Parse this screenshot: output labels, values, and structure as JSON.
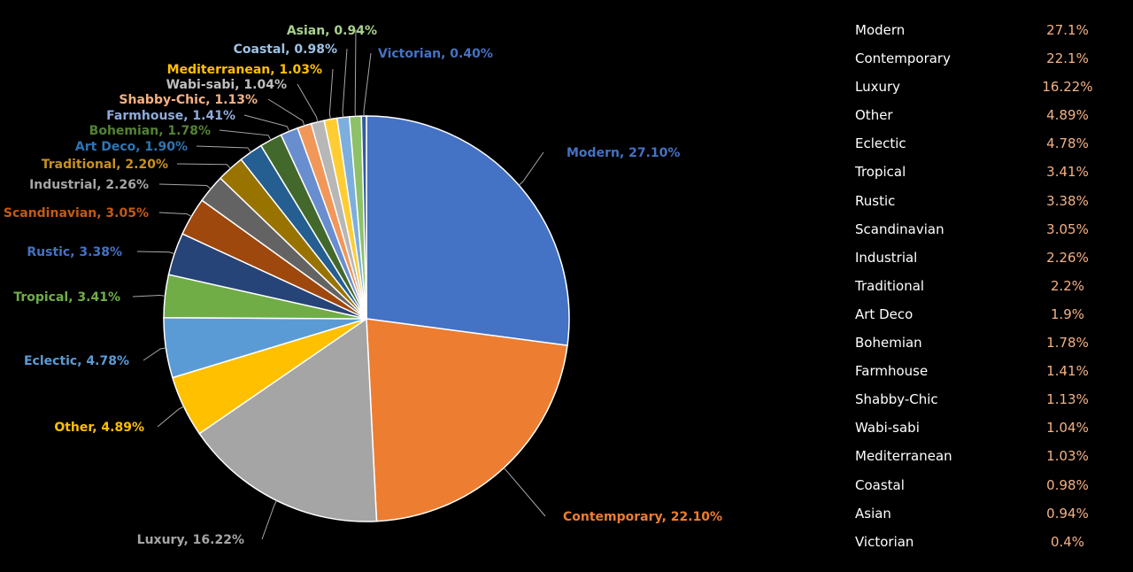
{
  "chart_data": {
    "type": "pie",
    "slices": [
      {
        "label": "Modern, 27.10%",
        "value": 27.1,
        "color": "#4472c4"
      },
      {
        "label": "Contemporary, 22.10%",
        "value": 22.1,
        "color": "#ed7d31"
      },
      {
        "label": "Luxury, 16.22%",
        "value": 16.22,
        "color": "#a5a5a5"
      },
      {
        "label": "Other, 4.89%",
        "value": 4.89,
        "color": "#ffc000"
      },
      {
        "label": "Eclectic, 4.78%",
        "value": 4.78,
        "color": "#5b9bd5"
      },
      {
        "label": "Tropical, 3.41%",
        "value": 3.41,
        "color": "#70ad47"
      },
      {
        "label": "Rustic, 3.38%",
        "value": 3.38,
        "color": "#264478"
      },
      {
        "label": "Scandinavian, 3.05%",
        "value": 3.05,
        "color": "#9e480e"
      },
      {
        "label": "Industrial, 2.26%",
        "value": 2.26,
        "color": "#636363"
      },
      {
        "label": "Traditional, 2.20%",
        "value": 2.2,
        "color": "#997300"
      },
      {
        "label": "Art Deco, 1.90%",
        "value": 1.9,
        "color": "#255e91"
      },
      {
        "label": "Bohemian, 1.78%",
        "value": 1.78,
        "color": "#43682b"
      },
      {
        "label": "Farmhouse, 1.41%",
        "value": 1.41,
        "color": "#698ed0"
      },
      {
        "label": "Shabby-Chic, 1.13%",
        "value": 1.13,
        "color": "#f1975a"
      },
      {
        "label": "Wabi-sabi, 1.04%",
        "value": 1.04,
        "color": "#b7b7b7"
      },
      {
        "label": "Mediterranean, 1.03%",
        "value": 1.03,
        "color": "#ffcd33"
      },
      {
        "label": "Coastal, 0.98%",
        "value": 0.98,
        "color": "#7cafdd"
      },
      {
        "label": "Asian, 0.94%",
        "value": 0.94,
        "color": "#8cc168"
      },
      {
        "label": "Victorian, 0.40%",
        "value": 0.4,
        "color": "#335aa1"
      }
    ]
  },
  "table": {
    "rows": [
      {
        "name": "Modern",
        "pct": "27.1%"
      },
      {
        "name": "Contemporary",
        "pct": "22.1%"
      },
      {
        "name": "Luxury",
        "pct": "16.22%"
      },
      {
        "name": "Other",
        "pct": "4.89%"
      },
      {
        "name": "Eclectic",
        "pct": "4.78%"
      },
      {
        "name": "Tropical",
        "pct": "3.41%"
      },
      {
        "name": "Rustic",
        "pct": "3.38%"
      },
      {
        "name": "Scandinavian",
        "pct": "3.05%"
      },
      {
        "name": "Industrial",
        "pct": "2.26%"
      },
      {
        "name": "Traditional",
        "pct": "2.2%"
      },
      {
        "name": "Art Deco",
        "pct": "1.9%"
      },
      {
        "name": "Bohemian",
        "pct": "1.78%"
      },
      {
        "name": "Farmhouse",
        "pct": "1.41%"
      },
      {
        "name": "Shabby-Chic",
        "pct": "1.13%"
      },
      {
        "name": "Wabi-sabi",
        "pct": "1.04%"
      },
      {
        "name": "Mediterranean",
        "pct": "1.03%"
      },
      {
        "name": "Coastal",
        "pct": "0.98%"
      },
      {
        "name": "Asian",
        "pct": "0.94%"
      },
      {
        "name": "Victorian",
        "pct": "0.4%"
      }
    ]
  }
}
